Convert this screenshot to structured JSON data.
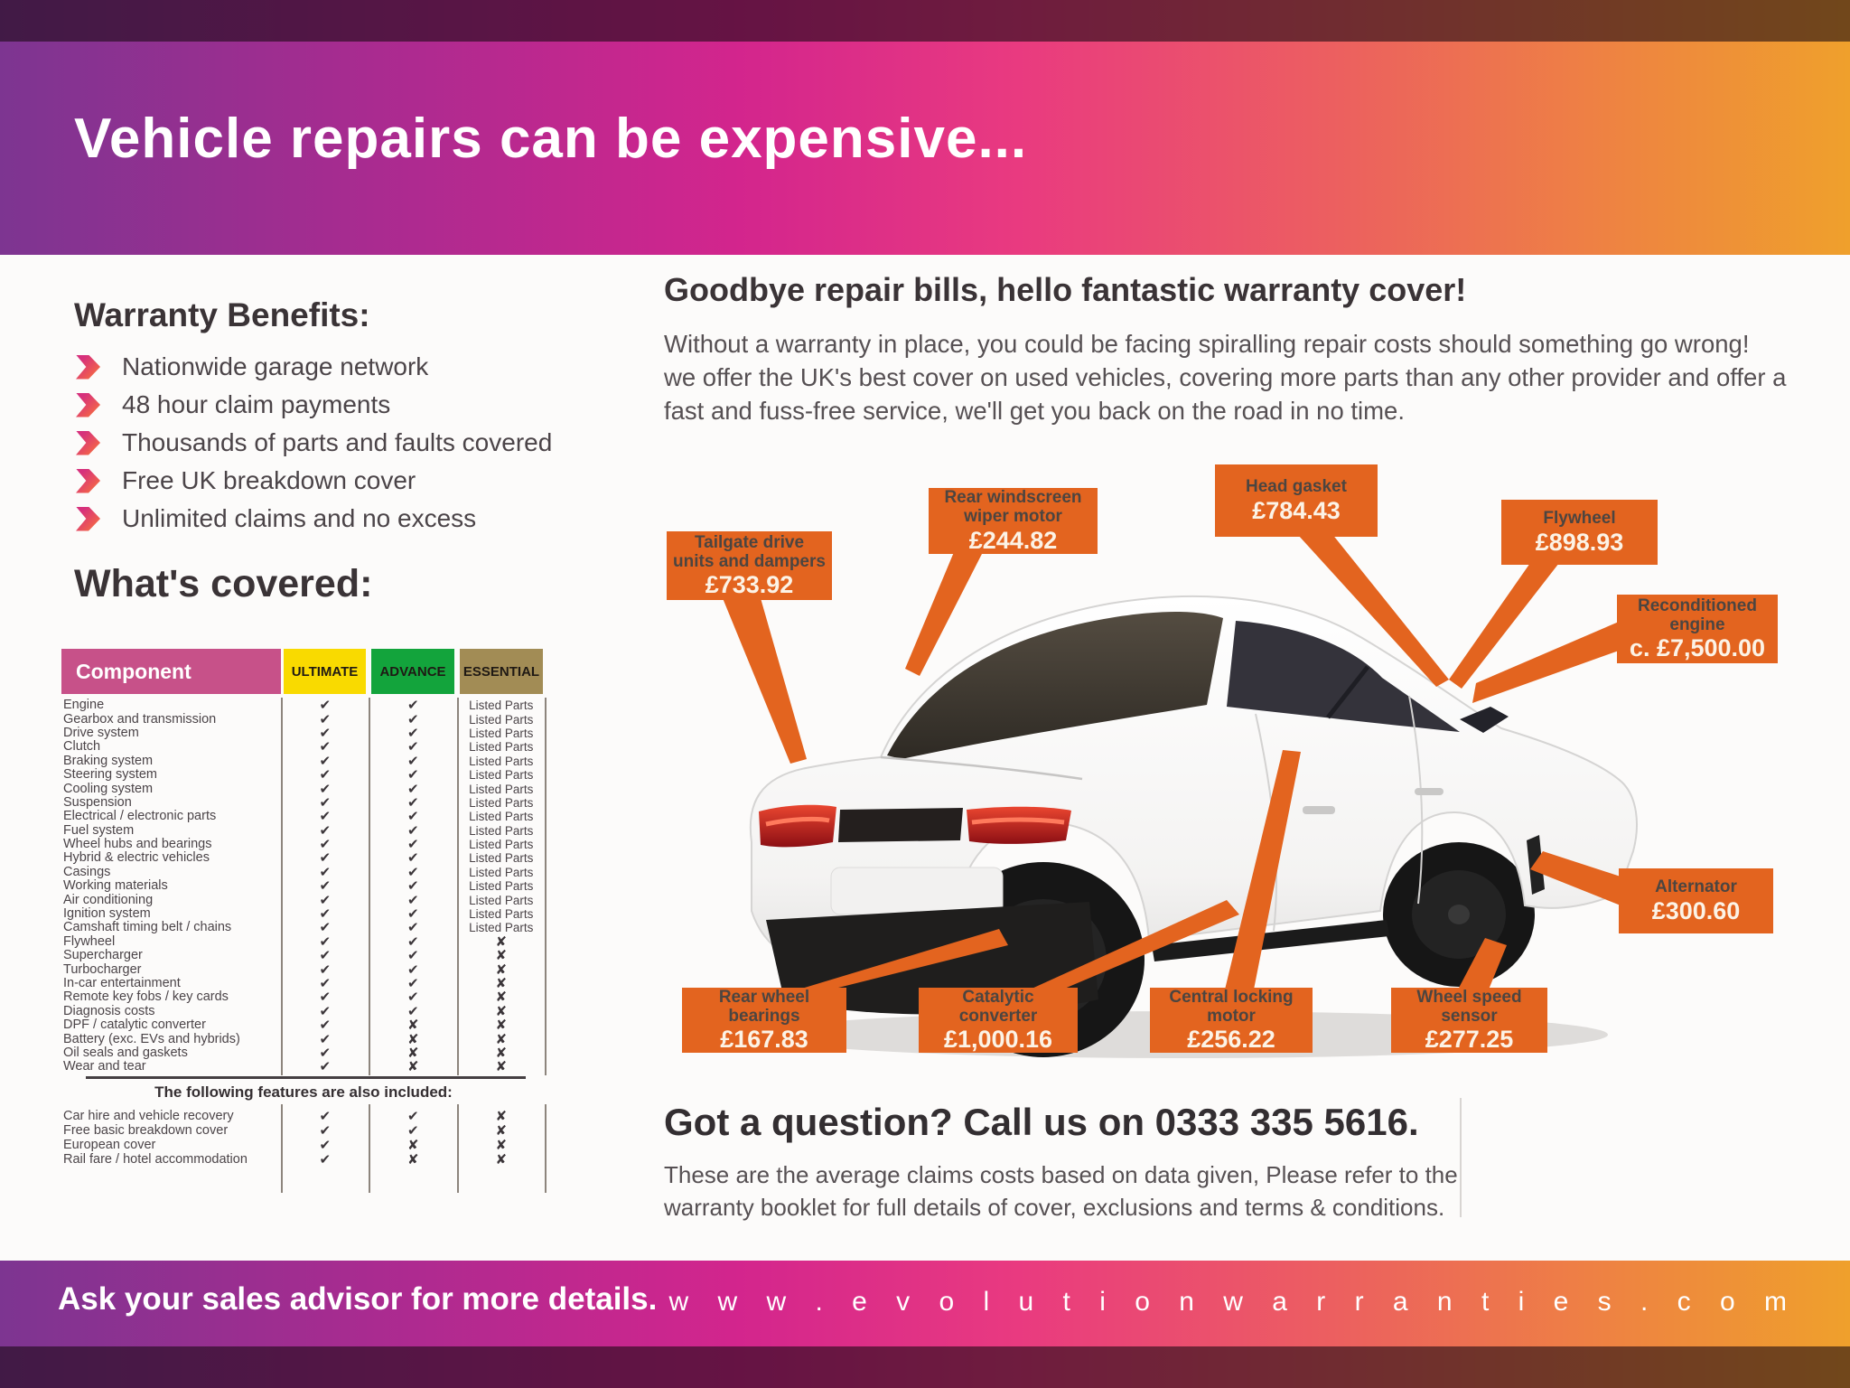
{
  "header": {
    "title": "Vehicle repairs can be expensive..."
  },
  "benefits": {
    "heading": "Warranty Benefits:",
    "items": [
      "Nationwide garage network",
      "48 hour claim payments",
      "Thousands of parts and faults covered",
      "Free UK breakdown cover",
      "Unlimited claims and no excess"
    ]
  },
  "covered": {
    "heading": "What's covered:",
    "table": {
      "columns": [
        "Component",
        "ULTIMATE",
        "ADVANCE",
        "ESSENTIAL"
      ],
      "rows": [
        {
          "component": "Engine",
          "ultimate": "check",
          "advance": "check",
          "essential": "Listed Parts"
        },
        {
          "component": "Gearbox and transmission",
          "ultimate": "check",
          "advance": "check",
          "essential": "Listed Parts"
        },
        {
          "component": "Drive system",
          "ultimate": "check",
          "advance": "check",
          "essential": "Listed Parts"
        },
        {
          "component": "Clutch",
          "ultimate": "check",
          "advance": "check",
          "essential": "Listed Parts"
        },
        {
          "component": "Braking system",
          "ultimate": "check",
          "advance": "check",
          "essential": "Listed Parts"
        },
        {
          "component": "Steering system",
          "ultimate": "check",
          "advance": "check",
          "essential": "Listed Parts"
        },
        {
          "component": "Cooling system",
          "ultimate": "check",
          "advance": "check",
          "essential": "Listed Parts"
        },
        {
          "component": "Suspension",
          "ultimate": "check",
          "advance": "check",
          "essential": "Listed Parts"
        },
        {
          "component": "Electrical / electronic parts",
          "ultimate": "check",
          "advance": "check",
          "essential": "Listed Parts"
        },
        {
          "component": "Fuel system",
          "ultimate": "check",
          "advance": "check",
          "essential": "Listed Parts"
        },
        {
          "component": "Wheel hubs and bearings",
          "ultimate": "check",
          "advance": "check",
          "essential": "Listed Parts"
        },
        {
          "component": "Hybrid & electric vehicles",
          "ultimate": "check",
          "advance": "check",
          "essential": "Listed Parts"
        },
        {
          "component": "Casings",
          "ultimate": "check",
          "advance": "check",
          "essential": "Listed Parts"
        },
        {
          "component": "Working materials",
          "ultimate": "check",
          "advance": "check",
          "essential": "Listed Parts"
        },
        {
          "component": "Air conditioning",
          "ultimate": "check",
          "advance": "check",
          "essential": "Listed Parts"
        },
        {
          "component": "Ignition system",
          "ultimate": "check",
          "advance": "check",
          "essential": "Listed Parts"
        },
        {
          "component": "Camshaft timing belt / chains",
          "ultimate": "check",
          "advance": "check",
          "essential": "Listed Parts"
        },
        {
          "component": "Flywheel",
          "ultimate": "check",
          "advance": "check",
          "essential": "cross"
        },
        {
          "component": "Supercharger",
          "ultimate": "check",
          "advance": "check",
          "essential": "cross"
        },
        {
          "component": "Turbocharger",
          "ultimate": "check",
          "advance": "check",
          "essential": "cross"
        },
        {
          "component": "In-car entertainment",
          "ultimate": "check",
          "advance": "check",
          "essential": "cross"
        },
        {
          "component": "Remote key fobs / key cards",
          "ultimate": "check",
          "advance": "check",
          "essential": "cross"
        },
        {
          "component": "Diagnosis costs",
          "ultimate": "check",
          "advance": "check",
          "essential": "cross"
        },
        {
          "component": "DPF / catalytic converter",
          "ultimate": "check",
          "advance": "cross",
          "essential": "cross"
        },
        {
          "component": "Battery (exc. EVs and hybrids)",
          "ultimate": "check",
          "advance": "cross",
          "essential": "cross"
        },
        {
          "component": "Oil seals and gaskets",
          "ultimate": "check",
          "advance": "cross",
          "essential": "cross"
        },
        {
          "component": "Wear and tear",
          "ultimate": "check",
          "advance": "cross",
          "essential": "cross"
        }
      ]
    },
    "features": {
      "heading": "The following features are also included:",
      "rows": [
        {
          "component": "Car hire and vehicle recovery",
          "ultimate": "check",
          "advance": "check",
          "essential": "cross"
        },
        {
          "component": "Free basic breakdown cover",
          "ultimate": "check",
          "advance": "check",
          "essential": "cross"
        },
        {
          "component": "European cover",
          "ultimate": "check",
          "advance": "cross",
          "essential": "cross"
        },
        {
          "component": "Rail fare / hotel accommodation",
          "ultimate": "check",
          "advance": "cross",
          "essential": "cross"
        }
      ]
    }
  },
  "promo": {
    "heading": "Goodbye repair bills, hello fantastic warranty cover!",
    "body_lines": [
      "Without a warranty in place, you could be facing spiralling repair costs should something go wrong!",
      "we offer the UK's best cover on used vehicles, covering more parts than any other provider and offer a fast and fuss-free service, we'll get you back on the road in no time."
    ]
  },
  "callouts": [
    {
      "label": "Tailgate drive units and dampers",
      "price": "£733.92"
    },
    {
      "label": "Rear windscreen wiper motor",
      "price": "£244.82"
    },
    {
      "label": "Head gasket",
      "price": "£784.43"
    },
    {
      "label": "Flywheel",
      "price": "£898.93"
    },
    {
      "label": "Reconditioned engine",
      "price": "c. £7,500.00"
    },
    {
      "label": "Alternator",
      "price": "£300.60"
    },
    {
      "label": "Rear wheel bearings",
      "price": "£167.83"
    },
    {
      "label": "Catalytic converter",
      "price": "£1,000.16"
    },
    {
      "label": "Central locking motor",
      "price": "£256.22"
    },
    {
      "label": "Wheel speed sensor",
      "price": "£277.25"
    }
  ],
  "contact": {
    "heading": "Got a question? Call us on 0333 335 5616.",
    "disclaimer": "These are the average claims costs based on data given, Please refer to the warranty booklet for full details of cover, exclusions and terms & conditions."
  },
  "footer": {
    "left": "Ask your sales advisor for more details.",
    "right": "w w w . e v o l u t i o n w a r r a n t i e s . c o m"
  },
  "symbols": {
    "check": "✔",
    "cross": "✘"
  },
  "colors": {
    "callout_orange": "#e3641f",
    "component_pink": "#c75189",
    "ultimate_yellow": "#f9da00",
    "advance_green": "#13a43c",
    "essential_tan": "#a28c55"
  }
}
